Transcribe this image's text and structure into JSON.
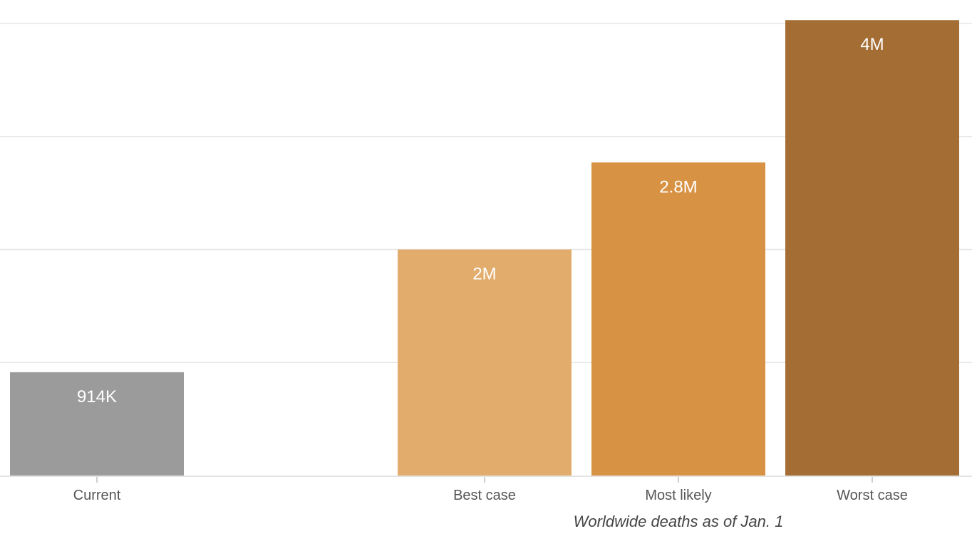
{
  "chart_data": {
    "type": "bar",
    "categories": [
      "Current",
      "Best case",
      "Most likely",
      "Worst case"
    ],
    "values": [
      914000,
      2000000,
      2770000,
      4030000
    ],
    "value_labels": [
      "914K",
      "2M",
      "2.8M",
      "4M"
    ],
    "colors": [
      "#9b9b9b",
      "#e2ac6d",
      "#d89244",
      "#a46d33"
    ],
    "group_label": "Worldwide deaths as of Jan. 1",
    "ylim": [
      0,
      4000000
    ],
    "y_gridlines": [
      1000000,
      2000000,
      3000000,
      4000000
    ],
    "grid": true,
    "legend": "none"
  }
}
